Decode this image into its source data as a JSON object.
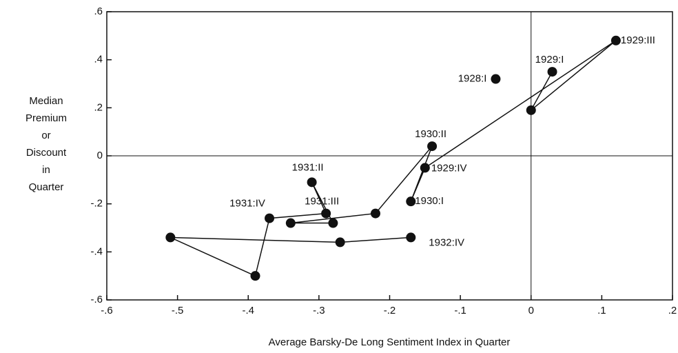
{
  "chart_data": {
    "type": "scatter",
    "x_label": "Average Barsky-De Long Sentiment Index in Quarter",
    "y_label": [
      "Median",
      "Premium",
      "or",
      "Discount",
      "in",
      "Quarter"
    ],
    "xlim": [
      -0.6,
      0.2
    ],
    "ylim": [
      -0.6,
      0.6
    ],
    "xticks": [
      {
        "value": -0.6,
        "label": "-.6"
      },
      {
        "value": -0.5,
        "label": "-.5"
      },
      {
        "value": -0.4,
        "label": "-.4"
      },
      {
        "value": -0.3,
        "label": "-.3"
      },
      {
        "value": -0.2,
        "label": "-.2"
      },
      {
        "value": -0.1,
        "label": "-.1"
      },
      0,
      {
        "value": 0.1,
        "label": ".1"
      },
      {
        "value": 0.2,
        "label": ".2"
      }
    ],
    "yticks": [
      {
        "value": 0.6,
        "label": ".6"
      },
      {
        "value": 0.4,
        "label": ".4"
      },
      {
        "value": 0.2,
        "label": ".2"
      },
      0,
      {
        "value": -0.2,
        "label": "-.2"
      },
      {
        "value": -0.4,
        "label": "-.4"
      },
      {
        "value": -0.6,
        "label": "-.6"
      }
    ],
    "zero_lines": true,
    "color": "#111111",
    "series": [
      {
        "line": false,
        "x": [
          -0.05
        ],
        "values": [
          0.32
        ],
        "labels": [
          "1928:I"
        ]
      },
      {
        "line": true,
        "x": [
          0.03,
          0.0,
          0.12,
          -0.15,
          -0.17,
          -0.14,
          -0.22,
          -0.34,
          -0.28,
          -0.31,
          -0.29,
          -0.37,
          -0.39,
          -0.51,
          -0.27,
          -0.17
        ],
        "values": [
          0.35,
          0.19,
          0.48,
          -0.05,
          -0.19,
          0.04,
          -0.24,
          -0.28,
          -0.28,
          -0.11,
          -0.24,
          -0.26,
          -0.5,
          -0.34,
          -0.36,
          -0.34
        ],
        "labels": [
          "1929:I",
          null,
          "1929:III",
          "1929:IV",
          "1930:I",
          "1930:II",
          null,
          null,
          null,
          "1931:II",
          "1931:III",
          "1931:IV",
          null,
          null,
          null,
          "1932:IV"
        ]
      }
    ]
  }
}
